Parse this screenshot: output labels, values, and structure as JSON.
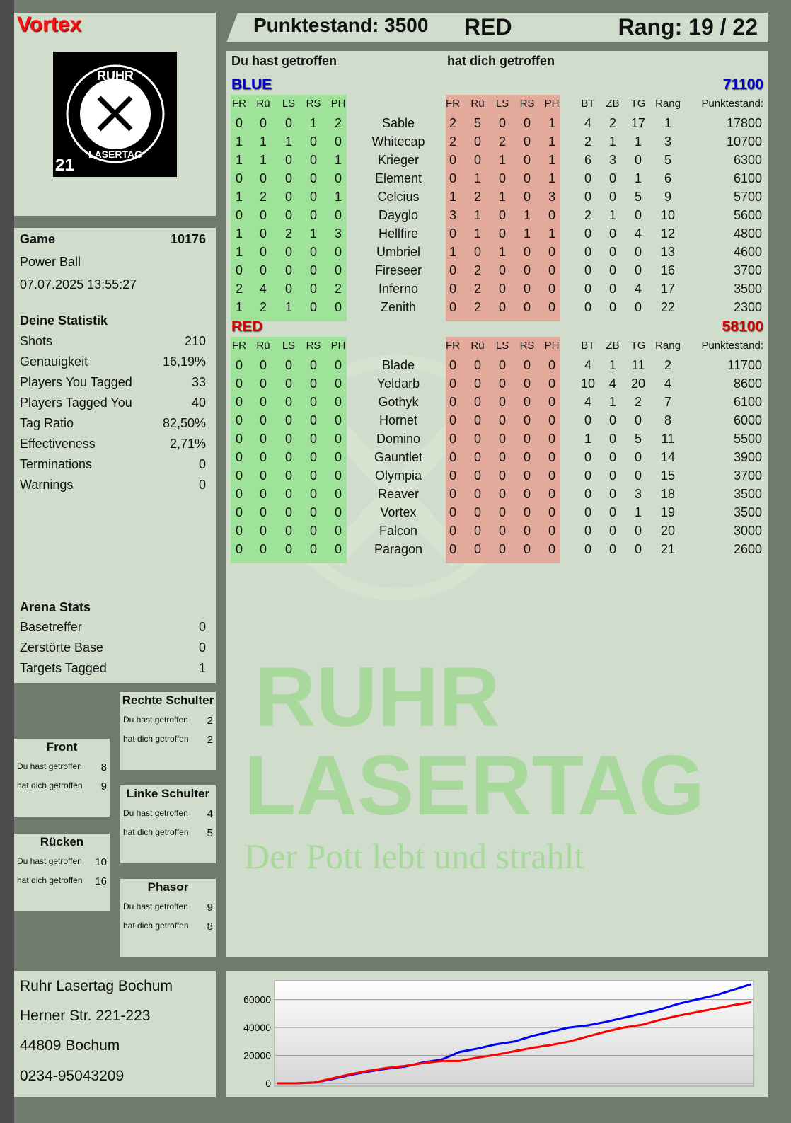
{
  "player": {
    "name": "Vortex",
    "logo_text": [
      "RUHR",
      "LASERTAG",
      "21"
    ]
  },
  "header": {
    "score_label": "Punktestand: 3500",
    "team": "RED",
    "rank_label": "Rang: 19 / 22"
  },
  "game": {
    "label": "Game",
    "id": "10176",
    "mode": "Power Ball",
    "datetime": "07.07.2025 13:55:27"
  },
  "stats": {
    "title": "Deine Statistik",
    "items": [
      [
        "Shots",
        "210"
      ],
      [
        "Genauigkeit",
        "16,19%"
      ],
      [
        "Players You Tagged",
        "33"
      ],
      [
        "Players Tagged You",
        "40"
      ],
      [
        "Tag Ratio",
        "82,50%"
      ],
      [
        "Effectiveness",
        "2,71%"
      ],
      [
        "Terminations",
        "0"
      ],
      [
        "Warnings",
        "0"
      ]
    ]
  },
  "arena": {
    "title": "Arena Stats",
    "items": [
      [
        "Basetreffer",
        "0"
      ],
      [
        "Zerstörte Base",
        "0"
      ],
      [
        "Targets Tagged",
        "1"
      ]
    ]
  },
  "hits": [
    {
      "title": "Rechte Schulter",
      "you_hit_label": "Du hast getroffen",
      "you_hit": "2",
      "hit_you_label": "hat dich getroffen",
      "hit_you": "2"
    },
    {
      "title": "Front",
      "you_hit_label": "Du hast getroffen",
      "you_hit": "8",
      "hit_you_label": "hat dich getroffen",
      "hit_you": "9"
    },
    {
      "title": "Linke Schulter",
      "you_hit_label": "Du hast getroffen",
      "you_hit": "4",
      "hit_you_label": "hat dich getroffen",
      "hit_you": "5"
    },
    {
      "title": "Rücken",
      "you_hit_label": "Du hast getroffen",
      "you_hit": "10",
      "hit_you_label": "hat dich getroffen",
      "hit_you": "16"
    },
    {
      "title": "Phasor",
      "you_hit_label": "Du hast getroffen",
      "you_hit": "9",
      "hit_you_label": "hat dich getroffen",
      "hit_you": "8"
    }
  ],
  "address": [
    "Ruhr Lasertag Bochum",
    "Herner Str. 221-223",
    "44809 Bochum",
    "0234-95043209"
  ],
  "table": {
    "you_hit_label": "Du hast getroffen",
    "hit_you_label": "hat dich getroffen",
    "columns_hit": [
      "FR",
      "Rü",
      "LS",
      "RS",
      "PH"
    ],
    "columns_stats": [
      "BT",
      "ZB",
      "TG",
      "Rang",
      "Punktestand:"
    ],
    "teams": [
      {
        "name": "BLUE",
        "total": "71100",
        "color": "#0000cc",
        "players": [
          [
            "Sable",
            [
              0,
              0,
              0,
              1,
              2
            ],
            [
              2,
              5,
              0,
              0,
              1
            ],
            [
              4,
              2,
              17,
              1
            ],
            17800
          ],
          [
            "Whitecap",
            [
              1,
              1,
              1,
              0,
              0
            ],
            [
              2,
              0,
              2,
              0,
              1
            ],
            [
              2,
              1,
              1,
              3
            ],
            10700
          ],
          [
            "Krieger",
            [
              1,
              1,
              0,
              0,
              1
            ],
            [
              0,
              0,
              1,
              0,
              1
            ],
            [
              6,
              3,
              0,
              5
            ],
            6300
          ],
          [
            "Element",
            [
              0,
              0,
              0,
              0,
              0
            ],
            [
              0,
              1,
              0,
              0,
              1
            ],
            [
              0,
              0,
              1,
              6
            ],
            6100
          ],
          [
            "Celcius",
            [
              1,
              2,
              0,
              0,
              1
            ],
            [
              1,
              2,
              1,
              0,
              3
            ],
            [
              0,
              0,
              5,
              9
            ],
            5700
          ],
          [
            "Dayglo",
            [
              0,
              0,
              0,
              0,
              0
            ],
            [
              3,
              1,
              0,
              1,
              0
            ],
            [
              2,
              1,
              0,
              10
            ],
            5600
          ],
          [
            "Hellfire",
            [
              1,
              0,
              2,
              1,
              3
            ],
            [
              0,
              1,
              0,
              1,
              1
            ],
            [
              0,
              0,
              4,
              12
            ],
            4800
          ],
          [
            "Umbriel",
            [
              1,
              0,
              0,
              0,
              0
            ],
            [
              1,
              0,
              1,
              0,
              0
            ],
            [
              0,
              0,
              0,
              13
            ],
            4600
          ],
          [
            "Fireseer",
            [
              0,
              0,
              0,
              0,
              0
            ],
            [
              0,
              2,
              0,
              0,
              0
            ],
            [
              0,
              0,
              0,
              16
            ],
            3700
          ],
          [
            "Inferno",
            [
              2,
              4,
              0,
              0,
              2
            ],
            [
              0,
              2,
              0,
              0,
              0
            ],
            [
              0,
              0,
              4,
              17
            ],
            3500
          ],
          [
            "Zenith",
            [
              1,
              2,
              1,
              0,
              0
            ],
            [
              0,
              2,
              0,
              0,
              0
            ],
            [
              0,
              0,
              0,
              22
            ],
            2300
          ]
        ]
      },
      {
        "name": "RED",
        "total": "58100",
        "color": "#dd0000",
        "players": [
          [
            "Blade",
            [
              0,
              0,
              0,
              0,
              0
            ],
            [
              0,
              0,
              0,
              0,
              0
            ],
            [
              4,
              1,
              11,
              2
            ],
            11700
          ],
          [
            "Yeldarb",
            [
              0,
              0,
              0,
              0,
              0
            ],
            [
              0,
              0,
              0,
              0,
              0
            ],
            [
              10,
              4,
              20,
              4
            ],
            8600
          ],
          [
            "Gothyk",
            [
              0,
              0,
              0,
              0,
              0
            ],
            [
              0,
              0,
              0,
              0,
              0
            ],
            [
              4,
              1,
              2,
              7
            ],
            6100
          ],
          [
            "Hornet",
            [
              0,
              0,
              0,
              0,
              0
            ],
            [
              0,
              0,
              0,
              0,
              0
            ],
            [
              0,
              0,
              0,
              8
            ],
            6000
          ],
          [
            "Domino",
            [
              0,
              0,
              0,
              0,
              0
            ],
            [
              0,
              0,
              0,
              0,
              0
            ],
            [
              1,
              0,
              5,
              11
            ],
            5500
          ],
          [
            "Gauntlet",
            [
              0,
              0,
              0,
              0,
              0
            ],
            [
              0,
              0,
              0,
              0,
              0
            ],
            [
              0,
              0,
              0,
              14
            ],
            3900
          ],
          [
            "Olympia",
            [
              0,
              0,
              0,
              0,
              0
            ],
            [
              0,
              0,
              0,
              0,
              0
            ],
            [
              0,
              0,
              0,
              15
            ],
            3700
          ],
          [
            "Reaver",
            [
              0,
              0,
              0,
              0,
              0
            ],
            [
              0,
              0,
              0,
              0,
              0
            ],
            [
              0,
              0,
              3,
              18
            ],
            3500
          ],
          [
            "Vortex",
            [
              0,
              0,
              0,
              0,
              0
            ],
            [
              0,
              0,
              0,
              0,
              0
            ],
            [
              0,
              0,
              1,
              19
            ],
            3500
          ],
          [
            "Falcon",
            [
              0,
              0,
              0,
              0,
              0
            ],
            [
              0,
              0,
              0,
              0,
              0
            ],
            [
              0,
              0,
              0,
              20
            ],
            3000
          ],
          [
            "Paragon",
            [
              0,
              0,
              0,
              0,
              0
            ],
            [
              0,
              0,
              0,
              0,
              0
            ],
            [
              0,
              0,
              0,
              21
            ],
            2600
          ]
        ]
      }
    ]
  },
  "watermark": {
    "line1": "RUHR",
    "line2": "LASERTAG",
    "slogan": "Der Pott lebt und strahlt"
  },
  "colors": {
    "you_hit_bg": "#9fe39a",
    "hit_you_bg": "#e3aa9c",
    "blue": "#0000ff",
    "red": "#ff0000"
  },
  "chart_data": {
    "type": "line",
    "ylim": [
      0,
      73500
    ],
    "yticks": [
      "0",
      "20000",
      "40000",
      "60000"
    ],
    "grid": true,
    "series": [
      {
        "color": "#0000ff",
        "values": [
          0,
          0,
          500,
          3000,
          6000,
          8500,
          10500,
          12000,
          15000,
          17000,
          22500,
          25000,
          28000,
          30000,
          34000,
          37000,
          40000,
          41500,
          44000,
          47000,
          50000,
          53000,
          57000,
          60000,
          63000,
          67000,
          71100
        ]
      },
      {
        "color": "#ff0000",
        "values": [
          0,
          0,
          500,
          3500,
          6500,
          9000,
          11000,
          12500,
          14500,
          16000,
          16000,
          18500,
          20500,
          23000,
          25500,
          27500,
          30000,
          33500,
          37000,
          40000,
          42000,
          45500,
          48500,
          51000,
          53500,
          56000,
          58100
        ]
      }
    ]
  }
}
